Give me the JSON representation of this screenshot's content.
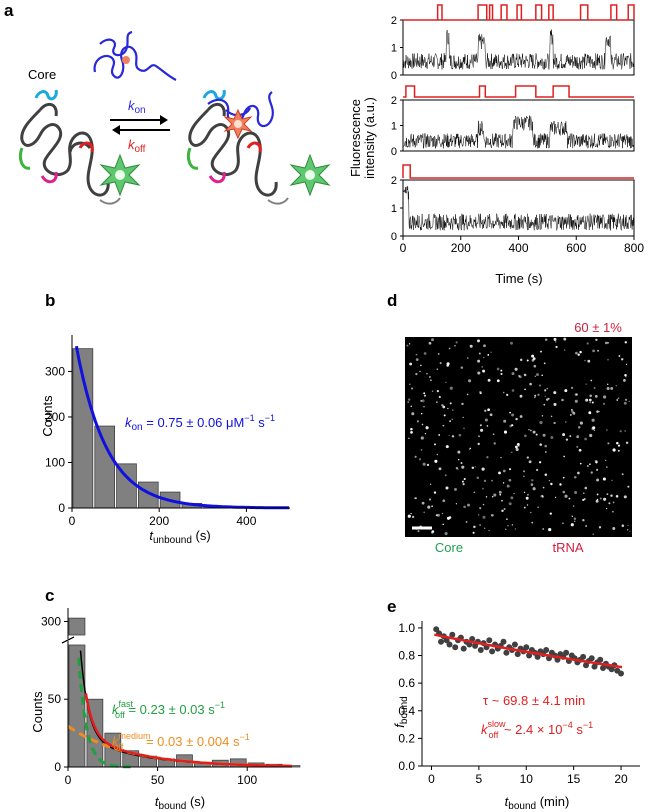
{
  "panel_labels": {
    "a": "a",
    "b": "b",
    "c": "c",
    "d": "d",
    "e": "e"
  },
  "panel_a": {
    "core_label": "Core",
    "k_on": {
      "sym": "k",
      "sub": "on"
    },
    "k_off": {
      "sym": "k",
      "sub": "off"
    },
    "colors": {
      "dark": "#404040",
      "blue": "#2828d8",
      "cyan": "#1aa8e0",
      "magenta": "#e0208c",
      "red": "#e02020",
      "green": "#3cb43c",
      "star": "#5fc86e",
      "orange": "#f08060"
    },
    "traces_ylabel_1": "Fluorescence",
    "traces_ylabel_2": "intensity (a.u.)",
    "traces_xlabel": "Time (s)",
    "trace_x_ticks": [
      "0",
      "200",
      "400",
      "600",
      "800"
    ],
    "trace1_y_ticks": [
      "2",
      "1",
      "0"
    ],
    "trace2_y_ticks": [
      "2",
      "1",
      "0"
    ],
    "trace3_y_ticks": [
      "2",
      "1",
      "0"
    ]
  },
  "panel_b": {
    "ylabel": "Counts",
    "xlabel_sym": "t",
    "xlabel_sub": "unbound",
    "xlabel_unit": " (s)",
    "fit_text": {
      "k": "k",
      "sub": "on",
      "rest": " = 0.75 ± 0.06 μM",
      "sup": "−1",
      "rest2": " s",
      "sup2": "−1"
    },
    "fit_color": "#1010e0"
  },
  "panel_c": {
    "ylabel": "Counts",
    "xlabel_sym": "t",
    "xlabel_sub": "bound",
    "xlabel_unit": " (s)",
    "fast_text": {
      "k": "k",
      "sup": "fast",
      "sub": "off",
      "rest": " = 0.23 ± 0.03 s",
      "sup2": "−1"
    },
    "medium_text": {
      "k": "k",
      "sup": "medium",
      "sub": "off",
      "rest": " = 0.03 ± 0.004 s",
      "sup2": "−1"
    },
    "colors": {
      "fast": "#20a040",
      "medium": "#f08c20",
      "combined": "#e02020",
      "single": "#000000"
    }
  },
  "panel_d": {
    "percentage": "60 ± 1%",
    "core_label": "Core",
    "trna_label": "tRNA",
    "colors": {
      "core": "#20a050",
      "trna": "#d02040"
    }
  },
  "panel_e": {
    "ylabel_sym": "f",
    "ylabel_sub": "bound",
    "xlabel_sym": "t",
    "xlabel_sub": "bound",
    "xlabel_unit": " (min)",
    "tau_text": "τ ~ 69.8 ± 4.1 min",
    "koff_text": {
      "k": "k",
      "sup": "slow",
      "sub": "off",
      "rest": " ~ 2.4 × 10",
      "sup2": "−4",
      "rest2": " s",
      "sup3": "−1"
    },
    "color": "#e02020"
  },
  "chart_data": [
    {
      "id": "b",
      "type": "bar",
      "title": "",
      "xlabel": "t_unbound (s)",
      "ylabel": "Counts",
      "categories": [
        "0–50",
        "50–100",
        "100–150",
        "150–200",
        "200–250",
        "250–300",
        "300–350",
        "350–400"
      ],
      "bin_starts": [
        0,
        50,
        100,
        150,
        200,
        250,
        300,
        350
      ],
      "bin_width": 50,
      "values": [
        350,
        180,
        97,
        57,
        35,
        10,
        4,
        2
      ],
      "xlim": [
        0,
        500
      ],
      "ylim": [
        0,
        380
      ],
      "x_ticks": [
        0,
        200,
        400
      ],
      "y_ticks": [
        0,
        100,
        200,
        300
      ],
      "fit": {
        "type": "exponential",
        "A": 410,
        "tau": 70,
        "label": "k_on = 0.75 ± 0.06 μM^-1 s^-1"
      }
    },
    {
      "id": "c",
      "type": "bar",
      "xlabel": "t_bound (s)",
      "ylabel": "Counts",
      "bin_starts": [
        0,
        10,
        20,
        30,
        40,
        50,
        60,
        70,
        80,
        90,
        100,
        110,
        120
      ],
      "bin_width": 10,
      "values": [
        305,
        50,
        25,
        12,
        8,
        6,
        9,
        3,
        5,
        6,
        3,
        2,
        1
      ],
      "xlim": [
        0,
        125
      ],
      "y_lower_ticks": [
        0,
        50
      ],
      "y_upper_ticks": [
        300
      ],
      "x_ticks": [
        0,
        50,
        100
      ],
      "axis_break": {
        "lower": [
          0,
          90
        ],
        "upper": [
          280,
          320
        ]
      },
      "fits": [
        {
          "name": "fast",
          "k": 0.23,
          "A": 320
        },
        {
          "name": "medium",
          "k": 0.03,
          "A": 30
        },
        {
          "name": "combined"
        },
        {
          "name": "single"
        }
      ]
    },
    {
      "id": "e",
      "type": "scatter",
      "xlabel": "t_bound (min)",
      "ylabel": "f_bound",
      "xlim": [
        -1,
        22
      ],
      "ylim": [
        0,
        1.05
      ],
      "x_ticks": [
        0,
        5,
        10,
        15,
        20
      ],
      "y_ticks": [
        0.0,
        0.2,
        0.4,
        0.6,
        0.8,
        1.0
      ],
      "x": [
        0.5,
        0.8,
        1.0,
        1.3,
        1.6,
        1.9,
        2.2,
        2.5,
        2.8,
        3.1,
        3.4,
        3.7,
        4.0,
        4.3,
        4.6,
        4.9,
        5.2,
        5.5,
        5.8,
        6.1,
        6.4,
        6.7,
        7.0,
        7.3,
        7.6,
        7.9,
        8.2,
        8.5,
        8.8,
        9.1,
        9.4,
        9.7,
        10.0,
        10.3,
        10.6,
        10.9,
        11.2,
        11.5,
        11.8,
        12.1,
        12.4,
        12.7,
        13.0,
        13.3,
        13.6,
        13.9,
        14.2,
        14.5,
        14.8,
        15.1,
        15.4,
        15.7,
        16.0,
        16.3,
        16.6,
        16.9,
        17.2,
        17.5,
        17.8,
        18.1,
        18.4,
        18.7,
        19.0,
        19.3,
        19.6,
        20.0
      ],
      "y": [
        0.99,
        0.96,
        0.9,
        0.94,
        0.91,
        0.88,
        0.95,
        0.86,
        0.91,
        0.93,
        0.85,
        0.9,
        0.88,
        0.92,
        0.87,
        0.9,
        0.84,
        0.89,
        0.86,
        0.91,
        0.83,
        0.88,
        0.85,
        0.87,
        0.9,
        0.82,
        0.86,
        0.84,
        0.88,
        0.81,
        0.85,
        0.83,
        0.86,
        0.8,
        0.84,
        0.82,
        0.79,
        0.83,
        0.81,
        0.84,
        0.78,
        0.82,
        0.8,
        0.77,
        0.81,
        0.79,
        0.82,
        0.76,
        0.8,
        0.78,
        0.75,
        0.77,
        0.79,
        0.73,
        0.76,
        0.78,
        0.72,
        0.75,
        0.77,
        0.71,
        0.74,
        0.72,
        0.7,
        0.73,
        0.69,
        0.67
      ],
      "fit": {
        "type": "exponential",
        "A": 0.955,
        "tau_min": 69.8
      }
    }
  ]
}
